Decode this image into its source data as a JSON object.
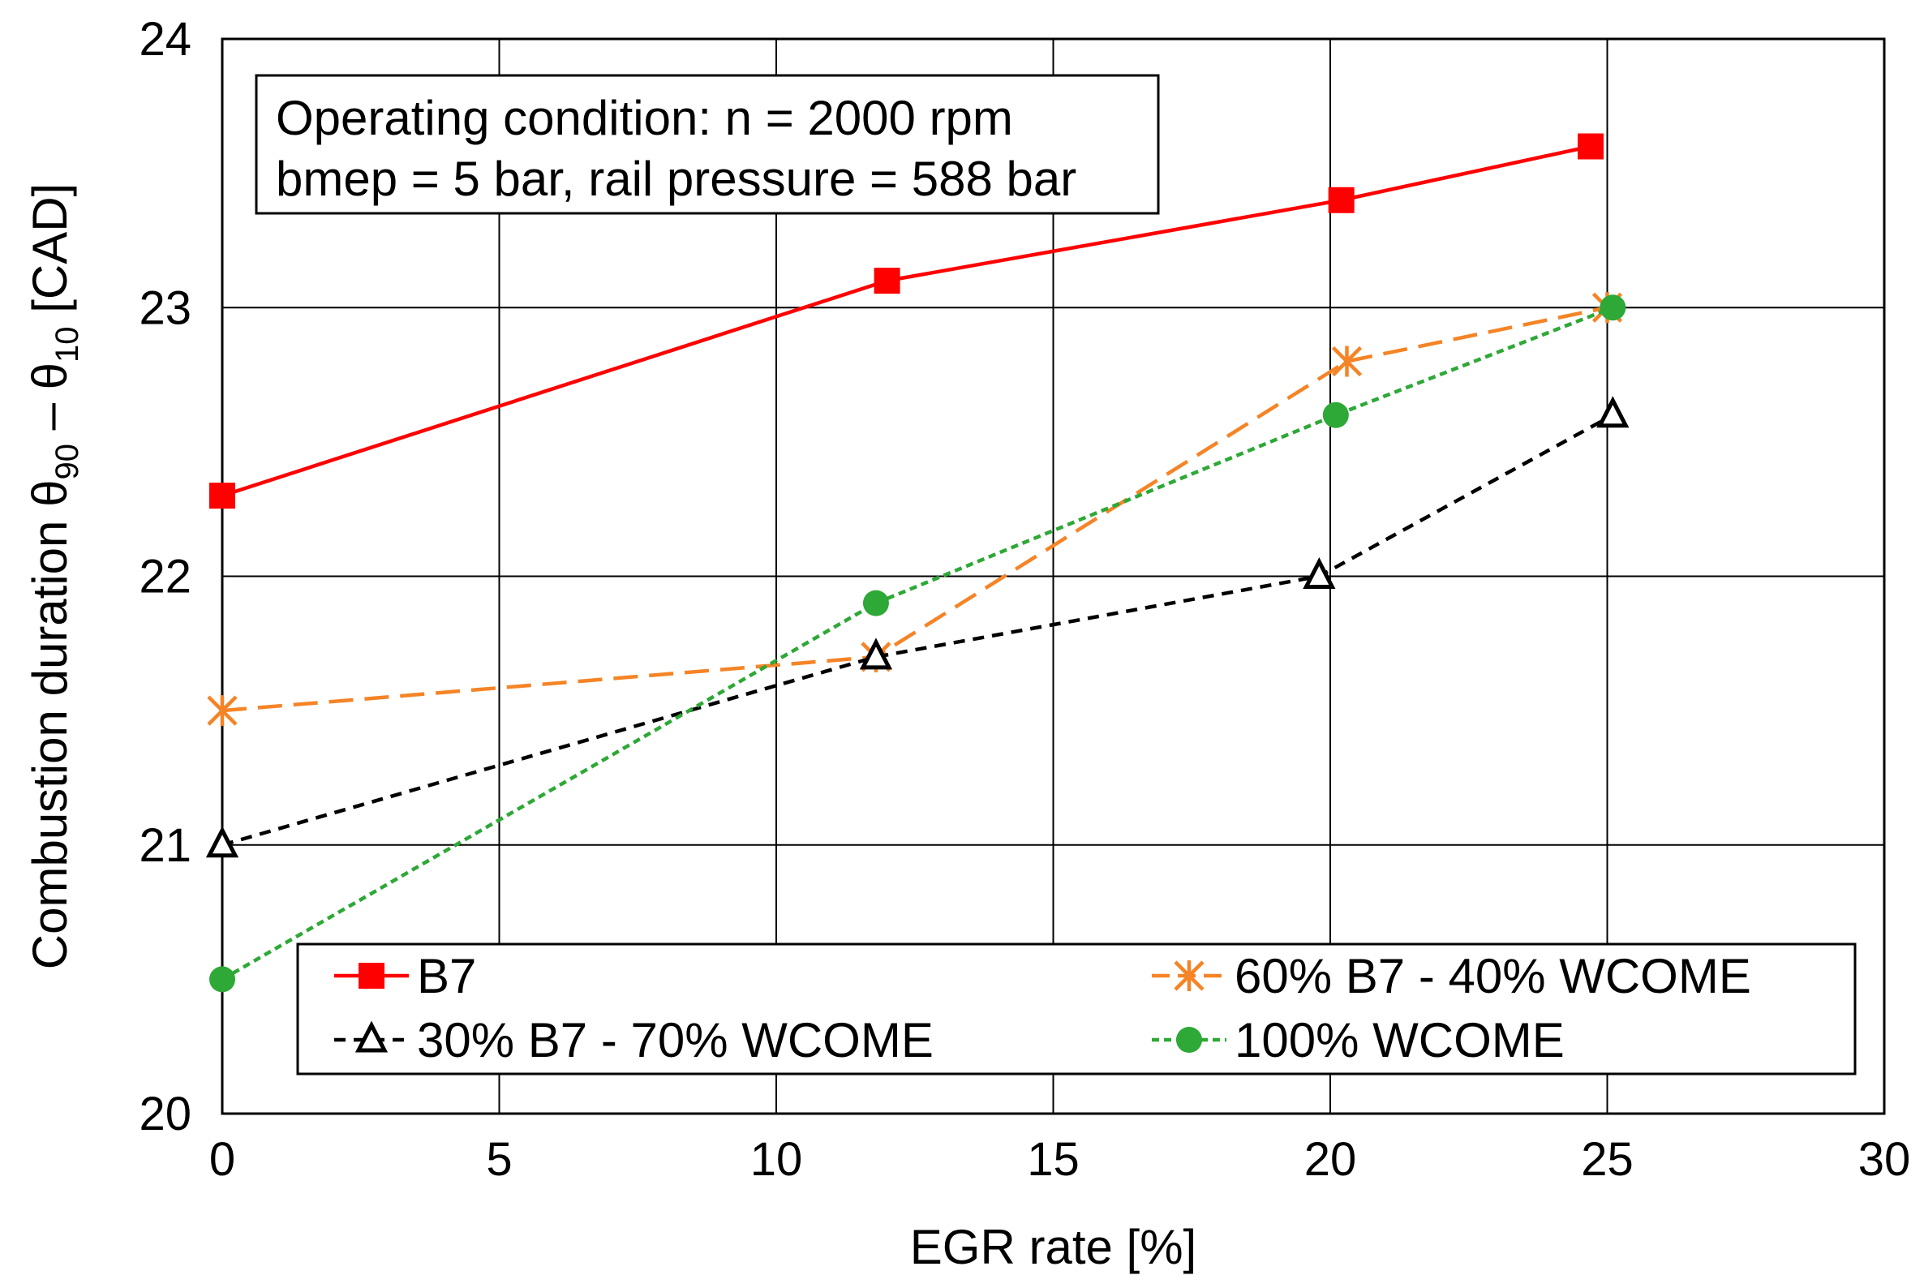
{
  "chart_data": {
    "type": "line",
    "title": "",
    "xlabel": "EGR rate [%]",
    "ylabel": {
      "main": "Combustion duration θ",
      "sub1": "90",
      "mid": " – θ",
      "sub2": "10",
      "tail": " [CAD]"
    },
    "xlim": [
      0,
      30
    ],
    "ylim": [
      20,
      24
    ],
    "xticks": [
      "0",
      "5",
      "10",
      "15",
      "20",
      "25",
      "30"
    ],
    "yticks": [
      "20",
      "21",
      "22",
      "23",
      "24"
    ],
    "grid": true,
    "annotation": {
      "line1": "Operating condition: n = 2000 rpm",
      "line2": "bmep = 5 bar, rail pressure = 588 bar"
    },
    "legend_position": "bottom",
    "series": [
      {
        "name": "B7",
        "color": "#ff0000",
        "marker": "square",
        "dash": "solid",
        "x": [
          0,
          12,
          20.2,
          24.7
        ],
        "y": [
          22.3,
          23.1,
          23.4,
          23.6
        ]
      },
      {
        "name": "60% B7 - 40% WCOME",
        "color": "#f58426",
        "marker": "asterisk",
        "dash": "long-dash",
        "x": [
          0,
          11.8,
          20.3,
          25
        ],
        "y": [
          21.5,
          21.7,
          22.8,
          23.0
        ]
      },
      {
        "name": "30% B7 - 70% WCOME",
        "color": "#000000",
        "marker": "triangle",
        "dash": "dash",
        "x": [
          0,
          11.8,
          19.8,
          25.1
        ],
        "y": [
          21.0,
          21.7,
          22.0,
          22.6
        ]
      },
      {
        "name": "100% WCOME",
        "color": "#2ea836",
        "marker": "circle",
        "dash": "short-dash",
        "x": [
          0,
          11.8,
          20.1,
          25.1
        ],
        "y": [
          20.5,
          21.9,
          22.6,
          23.0
        ]
      }
    ]
  }
}
